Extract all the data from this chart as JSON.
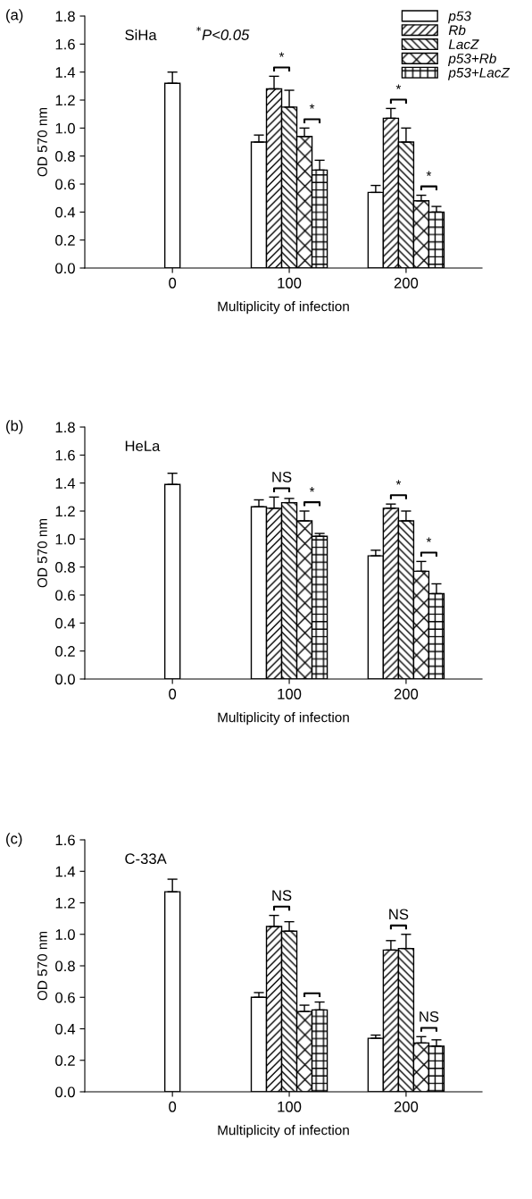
{
  "chart_data": [
    {
      "type": "bar",
      "title": "(a)",
      "xlabel": "Multiplicity of infection",
      "ylabel": "OD 570 nm",
      "categories": [
        "0",
        "100",
        "200"
      ],
      "series": [
        {
          "name": "p53",
          "color": "#ffffff",
          "values": [
            1.32,
            0.9,
            0.54
          ],
          "errors": [
            0.08,
            0.05,
            0.05
          ]
        },
        {
          "name": "Rb",
          "color": "#000000",
          "values": [
            null,
            1.28,
            1.07
          ],
          "errors": [
            null,
            0.09,
            0.07
          ]
        },
        {
          "name": "LacZ",
          "color": "#000000",
          "values": [
            null,
            1.15,
            0.9
          ],
          "errors": [
            null,
            0.12,
            0.1
          ]
        },
        {
          "name": "p53+Rb",
          "color": "#000000",
          "values": [
            null,
            0.94,
            0.48
          ],
          "errors": [
            null,
            0.06,
            0.04
          ]
        },
        {
          "name": "p53+LacZ",
          "color": "#000000",
          "values": [
            null,
            0.7,
            0.4
          ],
          "errors": [
            null,
            0.07,
            0.04
          ]
        }
      ],
      "ylim": [
        0,
        1.8
      ],
      "yticks": [
        {
          "value": 0,
          "label": "0.0"
        },
        {
          "value": 0.2,
          "label": "0.2"
        },
        {
          "value": 0.4,
          "label": "0.4"
        },
        {
          "value": 0.6,
          "label": "0.6"
        },
        {
          "value": 0.8,
          "label": "0.8"
        },
        {
          "value": 1.0,
          "label": "1.0"
        },
        {
          "value": 1.2,
          "label": "1.2"
        },
        {
          "value": 1.4,
          "label": "1.4"
        },
        {
          "value": 1.6,
          "label": "1.6"
        },
        {
          "value": 1.8,
          "label": "1.8"
        }
      ],
      "legend": "top right",
      "annotations": [
        "SiHa",
        "$^{*}$P<0.05",
        "*",
        "*",
        "*",
        "*"
      ]
    },
    {
      "type": "bar",
      "title": "(b)",
      "xlabel": "Multiplicity of infection",
      "ylabel": "OD 570 nm",
      "categories": [
        "0",
        "100",
        "200"
      ],
      "series": [
        {
          "color": "#ffffff",
          "values": [
            1.39,
            1.23,
            0.88
          ],
          "errors": [
            0.08,
            0.05,
            0.04
          ]
        },
        {
          "color": "#000000",
          "values": [
            null,
            1.22,
            1.22
          ],
          "errors": [
            null,
            0.08,
            0.03
          ]
        },
        {
          "color": "#000000",
          "values": [
            null,
            1.26,
            1.13
          ],
          "errors": [
            null,
            0.03,
            0.07
          ]
        },
        {
          "color": "#000000",
          "values": [
            null,
            1.13,
            0.77
          ],
          "errors": [
            null,
            0.07,
            0.07
          ]
        },
        {
          "color": "#000000",
          "values": [
            null,
            1.02,
            0.61
          ],
          "errors": [
            null,
            0.02,
            0.07
          ]
        }
      ],
      "ylim": [
        0,
        1.8
      ],
      "yticks": [
        {
          "value": 0,
          "label": "0.0"
        },
        {
          "value": 0.2,
          "label": "0.2"
        },
        {
          "value": 0.4,
          "label": "0.4"
        },
        {
          "value": 0.6,
          "label": "0.6"
        },
        {
          "value": 0.8,
          "label": "0.8"
        },
        {
          "value": 1.0,
          "label": "1.0"
        },
        {
          "value": 1.2,
          "label": "1.2"
        },
        {
          "value": 1.4,
          "label": "1.4"
        },
        {
          "value": 1.6,
          "label": "1.6"
        },
        {
          "value": 1.8,
          "label": "1.8"
        }
      ],
      "annotations": [
        "HeLa",
        "NS",
        "*",
        "*",
        "*"
      ]
    },
    {
      "type": "bar",
      "title": "(c)",
      "xlabel": "Multiplicity of infection",
      "ylabel": "OD 570 nm",
      "categories": [
        "0",
        "100",
        "200"
      ],
      "series": [
        {
          "color": "#ffffff",
          "values": [
            1.27,
            0.6,
            0.34
          ],
          "errors": [
            0.08,
            0.03,
            0.02
          ]
        },
        {
          "color": "#000000",
          "values": [
            null,
            1.05,
            0.9
          ],
          "errors": [
            null,
            0.07,
            0.06
          ]
        },
        {
          "color": "#000000",
          "values": [
            null,
            1.02,
            0.91
          ],
          "errors": [
            null,
            0.06,
            0.09
          ]
        },
        {
          "color": "#000000",
          "values": [
            null,
            0.51,
            0.31
          ],
          "errors": [
            null,
            0.04,
            0.04
          ]
        },
        {
          "color": "#000000",
          "values": [
            null,
            0.52,
            0.29
          ],
          "errors": [
            null,
            0.05,
            0.04
          ]
        }
      ],
      "ylim": [
        0,
        1.6
      ],
      "yticks": [
        {
          "value": 0,
          "label": "0.0"
        },
        {
          "value": 0.2,
          "label": "0.2"
        },
        {
          "value": 0.4,
          "label": "0.4"
        },
        {
          "value": 0.6,
          "label": "0.6"
        },
        {
          "value": 0.8,
          "label": "0.8"
        },
        {
          "value": 1.0,
          "label": "1.0"
        },
        {
          "value": 1.2,
          "label": "1.2"
        },
        {
          "value": 1.4,
          "label": "1.4"
        },
        {
          "value": 1.6,
          "label": "1.6"
        }
      ],
      "annotations": [
        "C-33A",
        "NS",
        null,
        "NS",
        "NS"
      ]
    }
  ]
}
